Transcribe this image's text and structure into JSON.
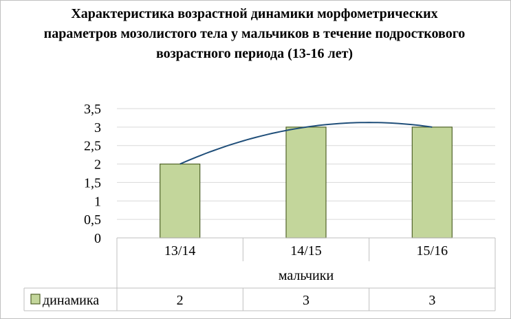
{
  "chart_data": {
    "type": "bar",
    "title": "Характеристика  возрастной динамики морфометрических  параметров  мозолистого  тела у мальчиков в течение  подросткового  возрастного периода  (13-16 лет)",
    "categories": [
      "13/14",
      "14/15",
      "15/16"
    ],
    "group_label": "мальчики",
    "series": [
      {
        "name": "динамика",
        "values": [
          2,
          3,
          3
        ]
      }
    ],
    "y_ticks": [
      "0",
      "0,5",
      "1",
      "1,5",
      "2",
      "2,5",
      "3",
      "3,5"
    ],
    "ylim": [
      0,
      3.5
    ],
    "grid": true,
    "trendline": "polynomial",
    "data_table": true,
    "colors": {
      "bar_fill": "#c3d69b",
      "bar_stroke": "#4f6228",
      "trendline": "#1f4e79",
      "grid": "#d9d9d9"
    }
  }
}
